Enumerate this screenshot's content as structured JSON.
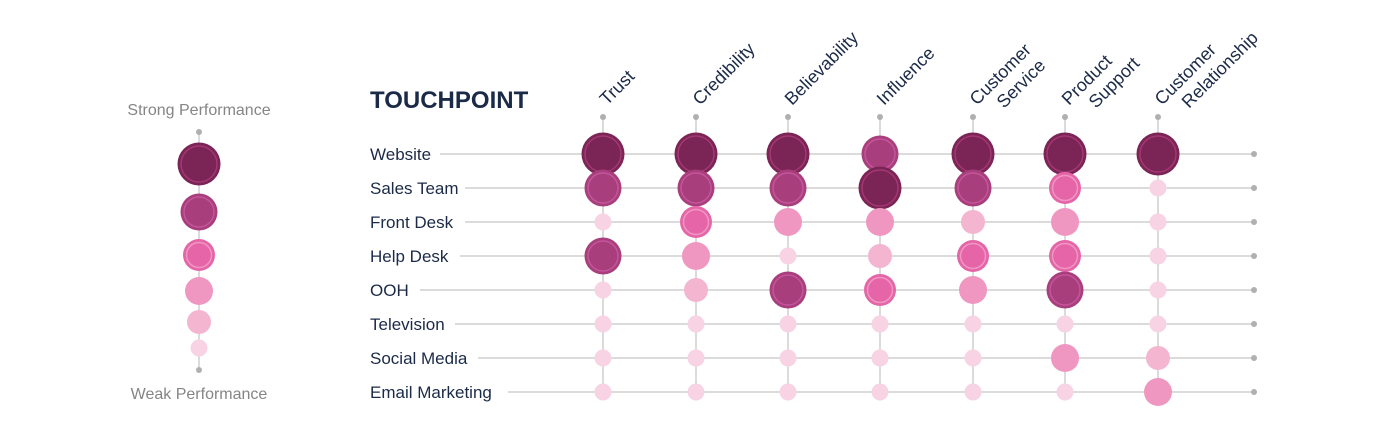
{
  "chart_data": {
    "type": "bubble-matrix",
    "title": "TOUCHPOINT",
    "legend": {
      "top_label": "Strong Performance",
      "bottom_label": "Weak Performance",
      "levels": [
        6,
        5,
        4,
        3,
        2,
        1
      ]
    },
    "columns": [
      [
        "Trust"
      ],
      [
        "Credibility"
      ],
      [
        "Believability"
      ],
      [
        "Influence"
      ],
      [
        "Customer",
        "Service"
      ],
      [
        "Product",
        "Support"
      ],
      [
        "Customer",
        "Relationship"
      ]
    ],
    "rows": [
      "Website",
      "Sales Team",
      "Front Desk",
      "Help Desk",
      "OOH",
      "Television",
      "Social Media",
      "Email Marketing"
    ],
    "values": [
      [
        6,
        6,
        6,
        5,
        6,
        6,
        6
      ],
      [
        5,
        5,
        5,
        6,
        5,
        4,
        1
      ],
      [
        1,
        4,
        3,
        3,
        2,
        3,
        1
      ],
      [
        5,
        3,
        1,
        2,
        4,
        4,
        1
      ],
      [
        1,
        2,
        5,
        4,
        3,
        5,
        1
      ],
      [
        1,
        1,
        1,
        1,
        1,
        1,
        1
      ],
      [
        1,
        1,
        1,
        1,
        1,
        3,
        2
      ],
      [
        1,
        1,
        1,
        1,
        1,
        1,
        3
      ]
    ],
    "colors": {
      "1": "#f7d3e3",
      "2": "#f3b5d0",
      "3": "#ef96c1",
      "4": "#e565a8",
      "5": "#a83f7c",
      "6": "#7b2456"
    }
  }
}
